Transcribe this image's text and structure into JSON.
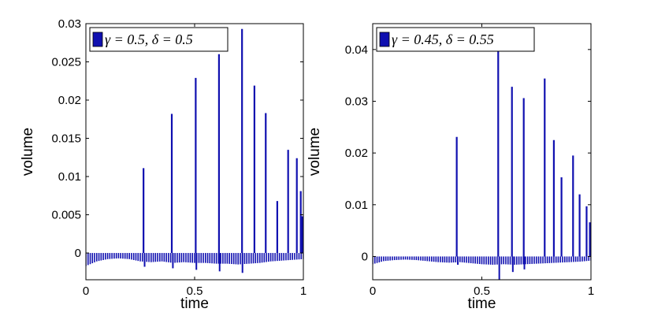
{
  "chart_data": [
    {
      "type": "bar",
      "xlabel": "time",
      "ylabel": "volume",
      "xlim": [
        0,
        1
      ],
      "ylim": [
        -0.0035,
        0.03
      ],
      "xticks": [
        0,
        0.5,
        1
      ],
      "xtick_labels": [
        "0",
        "0.5",
        "1"
      ],
      "yticks": [
        0,
        0.005,
        0.01,
        0.015,
        0.02,
        0.025,
        0.03
      ],
      "ytick_labels": [
        "0",
        "0.005",
        "0.01",
        "0.015",
        "0.02",
        "0.025",
        "0.03"
      ],
      "legend": {
        "label": "γ = 0.5, δ = 0.5",
        "placement": "top-left"
      },
      "color": "#1010b0",
      "peaks": {
        "x": [
          0.265,
          0.395,
          0.505,
          0.612,
          0.718,
          0.775,
          0.827,
          0.88,
          0.93,
          0.97,
          0.988
        ],
        "values": [
          0.0111,
          0.0182,
          0.0229,
          0.026,
          0.0293,
          0.0219,
          0.0183,
          0.0068,
          0.0135,
          0.0124,
          0.0081
        ]
      },
      "end_bars": {
        "x": [
          0.995,
          1.0
        ],
        "values": [
          0.0048,
          0.0014
        ]
      },
      "negative_baseline": {
        "x": [
          0.0,
          0.05,
          0.1,
          0.15,
          0.2,
          0.25,
          0.3,
          0.35,
          0.4,
          0.45,
          0.5,
          0.55,
          0.6,
          0.65,
          0.7,
          0.75,
          0.8,
          0.85,
          0.9,
          0.95,
          1.0
        ],
        "values": [
          -0.0017,
          -0.0011,
          -0.0008,
          -0.0007,
          -0.0008,
          -0.0011,
          -0.0012,
          -0.0011,
          -0.0013,
          -0.0012,
          -0.0013,
          -0.0013,
          -0.0014,
          -0.0014,
          -0.0015,
          -0.0014,
          -0.0013,
          -0.0011,
          -0.001,
          -0.0009,
          -0.0008
        ]
      },
      "dips": {
        "x": [
          0.27,
          0.4,
          0.508,
          0.615,
          0.72
        ],
        "values": [
          -0.0018,
          -0.002,
          -0.0022,
          -0.0024,
          -0.0026
        ]
      }
    },
    {
      "type": "bar",
      "xlabel": "time",
      "ylabel": "volume",
      "xlim": [
        0,
        1
      ],
      "ylim": [
        -0.0045,
        0.045
      ],
      "xticks": [
        0,
        0.5,
        1
      ],
      "xtick_labels": [
        "0",
        "0.5",
        "1"
      ],
      "yticks": [
        0,
        0.01,
        0.02,
        0.03,
        0.04
      ],
      "ytick_labels": [
        "0",
        "0.01",
        "0.02",
        "0.03",
        "0.04"
      ],
      "legend": {
        "label": "γ = 0.45, δ = 0.55",
        "placement": "top-left"
      },
      "color": "#1010b0",
      "peaks": {
        "x": [
          0.385,
          0.575,
          0.638,
          0.692,
          0.788,
          0.83,
          0.865,
          0.918,
          0.948,
          0.98
        ],
        "values": [
          0.0231,
          0.042,
          0.0328,
          0.0306,
          0.0344,
          0.0225,
          0.0153,
          0.0195,
          0.012,
          0.0097
        ]
      },
      "end_bars": {
        "x": [
          0.995,
          1.0
        ],
        "values": [
          0.0066,
          0.0009
        ]
      },
      "negative_baseline": {
        "x": [
          0.0,
          0.05,
          0.1,
          0.15,
          0.2,
          0.25,
          0.3,
          0.35,
          0.4,
          0.45,
          0.5,
          0.55,
          0.6,
          0.65,
          0.7,
          0.75,
          0.8,
          0.85,
          0.9,
          0.95,
          1.0
        ],
        "values": [
          -0.0015,
          -0.0009,
          -0.0007,
          -0.0006,
          -0.0007,
          -0.0009,
          -0.0011,
          -0.0012,
          -0.0011,
          -0.0013,
          -0.0015,
          -0.0016,
          -0.0015,
          -0.0016,
          -0.0015,
          -0.0014,
          -0.0013,
          -0.0012,
          -0.0011,
          -0.001,
          -0.0008
        ]
      },
      "dips": {
        "x": [
          0.39,
          0.58,
          0.642,
          0.695
        ],
        "values": [
          -0.0016,
          -0.0045,
          -0.003,
          -0.0025
        ]
      }
    }
  ]
}
